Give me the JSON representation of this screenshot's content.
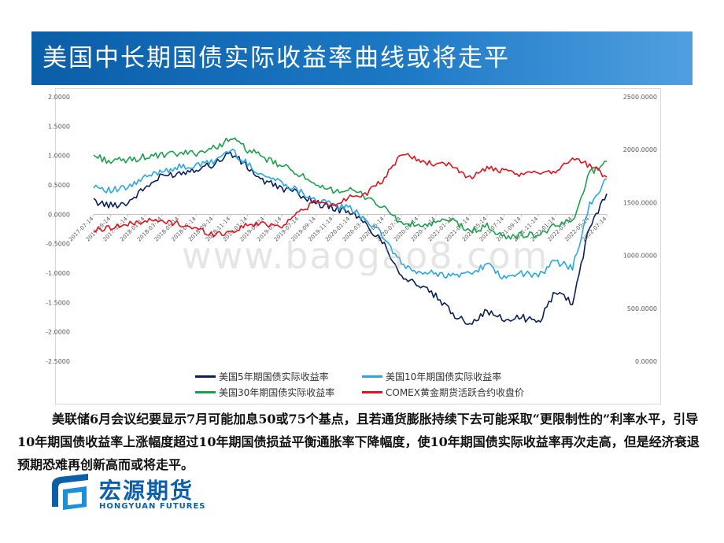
{
  "header": {
    "title": "美国中长期国债实际收益率曲线或将走平"
  },
  "watermark": "www.baogao8.com",
  "chart_data": {
    "type": "line",
    "title": "",
    "x": [
      "2017-07-14",
      "2017-09-14",
      "2017-11-14",
      "2018-01-14",
      "2018-03-14",
      "2018-05-14",
      "2018-07-14",
      "2018-09-14",
      "2018-11-14",
      "2019-01-14",
      "2019-03-14",
      "2019-05-14",
      "2019-07-14",
      "2019-09-14",
      "2019-11-14",
      "2020-01-14",
      "2020-03-14",
      "2020-05-14",
      "2020-07-14",
      "2020-09-14",
      "2020-11-14",
      "2021-01-14",
      "2021-03-14",
      "2021-05-14",
      "2021-07-14",
      "2021-09-14",
      "2021-11-14",
      "2022-01-14",
      "2022-03-14",
      "2022-05-14",
      "2022-07-14"
    ],
    "xticklabels": [
      "2017-07-14",
      "2017-09-14",
      "2017-11-14",
      "2018-01-14",
      "2018-03-14",
      "2018-05-14",
      "2018-07-14",
      "2018-09-14",
      "2018-11-14",
      "2019-01-14",
      "2019-03-14",
      "2019-05-14",
      "2019-07-14",
      "2019-09-14",
      "2019-11-14",
      "2020-01-14",
      "2020-03-14",
      "2020-05-14",
      "2020-07-14",
      "2020-09-14",
      "2020-11-14",
      "2021-01-14",
      "2021-03-14",
      "2021-05-14",
      "2021-07-14",
      "2021-09-14",
      "2021-11-14",
      "2022-01-14",
      "2022-03-14",
      "2022-05-14",
      "2022-07-14"
    ],
    "yticks_left": [
      "2.0000",
      "1.5000",
      "1.0000",
      "0.5000",
      "0.0000",
      "-0.5000",
      "-1.0000",
      "-1.5000",
      "-2.0000",
      "-2.5000"
    ],
    "yticks_right": [
      "2500.0000",
      "2000.0000",
      "1500.0000",
      "1000.0000",
      "500.0000",
      "0.0000"
    ],
    "ylim_left": [
      -2.5,
      2.0
    ],
    "ylim_right": [
      0,
      2500
    ],
    "grid": false,
    "legend_position": "bottom",
    "series": [
      {
        "name": "美国5年期国债实际收益率",
        "axis": "left",
        "color": "#0a1f5c",
        "values": [
          0.22,
          0.15,
          0.2,
          0.45,
          0.65,
          0.7,
          0.78,
          0.85,
          1.05,
          0.8,
          0.55,
          0.45,
          0.35,
          0.2,
          0.1,
          0.05,
          -0.2,
          -0.5,
          -1.05,
          -1.2,
          -1.4,
          -1.7,
          -1.85,
          -1.65,
          -1.8,
          -1.75,
          -1.85,
          -1.3,
          -1.5,
          -0.2,
          0.35
        ]
      },
      {
        "name": "美国10年期国债实际收益率",
        "axis": "left",
        "color": "#29a8e0",
        "values": [
          0.5,
          0.4,
          0.45,
          0.62,
          0.75,
          0.8,
          0.82,
          0.9,
          1.1,
          0.85,
          0.65,
          0.55,
          0.4,
          0.25,
          0.15,
          0.1,
          -0.1,
          -0.4,
          -0.85,
          -1.0,
          -1.0,
          -1.05,
          -1.0,
          -0.85,
          -1.1,
          -1.0,
          -1.05,
          -0.8,
          -0.9,
          0.15,
          0.6
        ]
      },
      {
        "name": "美国30年期国债实际收益率",
        "axis": "left",
        "color": "#1aa14a",
        "values": [
          1.0,
          0.9,
          0.92,
          0.98,
          1.0,
          1.03,
          1.05,
          1.12,
          1.3,
          1.1,
          0.95,
          0.82,
          0.7,
          0.45,
          0.42,
          0.4,
          0.3,
          0.1,
          -0.15,
          -0.2,
          -0.15,
          -0.1,
          -0.3,
          -0.2,
          -0.4,
          -0.35,
          -0.35,
          -0.2,
          -0.1,
          0.7,
          0.9
        ]
      },
      {
        "name": "COMEX黄金期货活跃合约收盘价",
        "axis": "right",
        "color": "#e0141e",
        "values": [
          1230,
          1270,
          1290,
          1330,
          1320,
          1300,
          1250,
          1200,
          1220,
          1290,
          1300,
          1280,
          1410,
          1510,
          1470,
          1560,
          1590,
          1720,
          1970,
          1900,
          1860,
          1850,
          1730,
          1830,
          1790,
          1760,
          1790,
          1800,
          1920,
          1850,
          1740
        ]
      }
    ]
  },
  "paragraph": "美联储6月会议纪要显示7月可能加息50或75个基点，且若通货膨胀持续下去可能采取“更限制性的”利率水平，引导10年期国债收益率上涨幅度超过10年期国债损益平衡通胀率下降幅度，使10年期国债实际收益率再次走高，但是经济衰退预期恐难再创新高而或将走平。",
  "logo": {
    "name_cn": "宏源期货",
    "name_en": "HONGYUAN FUTURES",
    "color": "#0d5fa8"
  }
}
